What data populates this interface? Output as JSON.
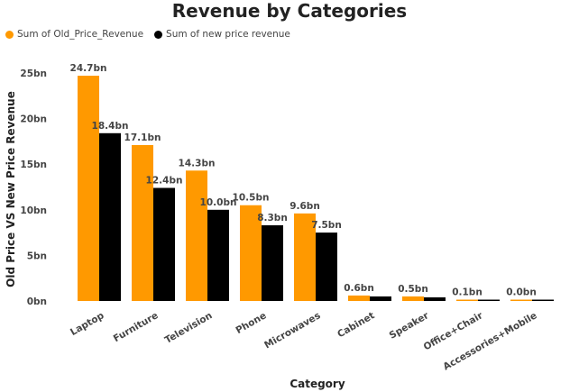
{
  "chart_data": {
    "type": "bar",
    "title": "Revenue by Categories",
    "xlabel": "Category",
    "ylabel": "Old Price VS New Price Revenue",
    "categories": [
      "Laptop",
      "Furniture",
      "Television",
      "Phone",
      "Microwaves",
      "Cabinet",
      "Speaker",
      "Office+Chair",
      "Accessories+Mobile"
    ],
    "series": [
      {
        "name": "Sum of Old_Price_Revenue",
        "color": "#FF9900",
        "values": [
          24.7,
          17.1,
          14.3,
          10.5,
          9.6,
          0.6,
          0.5,
          0.1,
          0.0
        ],
        "labels": [
          "24.7bn",
          "17.1bn",
          "14.3bn",
          "10.5bn",
          "9.6bn",
          "0.6bn",
          "0.5bn",
          "0.1bn",
          "0.0bn"
        ]
      },
      {
        "name": "Sum of new price revenue",
        "color": "#000000",
        "values": [
          18.4,
          12.4,
          10.0,
          8.3,
          7.5,
          0.5,
          0.4,
          0.1,
          0.05
        ],
        "labels": [
          "18.4bn",
          "12.4bn",
          "10.0bn",
          "8.3bn",
          "7.5bn",
          "",
          "",
          "",
          ""
        ]
      }
    ],
    "ylim": [
      0,
      25
    ],
    "yticks": [
      "0bn",
      "5bn",
      "10bn",
      "15bn",
      "20bn",
      "25bn"
    ],
    "ytick_values": [
      0,
      5,
      10,
      15,
      20,
      25
    ],
    "legend_position": "top-left",
    "grid": false
  }
}
